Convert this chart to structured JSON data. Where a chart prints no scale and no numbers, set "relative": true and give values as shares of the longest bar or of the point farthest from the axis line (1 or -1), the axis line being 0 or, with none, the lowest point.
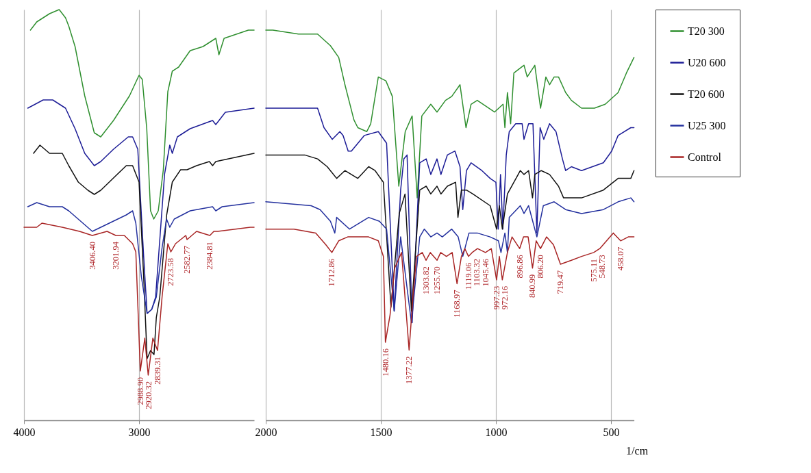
{
  "chart_data": [
    {
      "type": "line",
      "relative": true,
      "xlim": [
        4000,
        2000
      ],
      "xticks": [
        4000,
        3000
      ],
      "grid": "x",
      "line_style": "solid",
      "marker": "none",
      "series": [
        {
          "color": "#2f8f2f",
          "x": [
            3944,
            3889,
            3778,
            3694,
            3639,
            3611,
            3556,
            3472,
            3389,
            3333,
            3222,
            3083,
            3000,
            2972,
            2933,
            2900,
            2872,
            2833,
            2789,
            2750,
            2711,
            2656,
            2556,
            2444,
            2333,
            2306,
            2261,
            2050,
            2000
          ],
          "values": [
            0.95,
            0.97,
            0.99,
            1.0,
            0.98,
            0.96,
            0.91,
            0.79,
            0.7,
            0.69,
            0.73,
            0.79,
            0.84,
            0.83,
            0.71,
            0.51,
            0.49,
            0.51,
            0.61,
            0.8,
            0.85,
            0.86,
            0.9,
            0.91,
            0.93,
            0.89,
            0.93,
            0.95,
            0.95
          ]
        },
        {
          "color": "#1c1c96",
          "x": [
            3967,
            3833,
            3750,
            3639,
            3556,
            3472,
            3389,
            3333,
            3222,
            3094,
            3056,
            3011,
            2960,
            2930,
            2890,
            2856,
            2817,
            2778,
            2733,
            2711,
            2667,
            2556,
            2361,
            2333,
            2250,
            2000
          ],
          "values": [
            0.76,
            0.78,
            0.78,
            0.76,
            0.71,
            0.65,
            0.62,
            0.63,
            0.66,
            0.69,
            0.69,
            0.66,
            0.4,
            0.26,
            0.27,
            0.3,
            0.45,
            0.6,
            0.67,
            0.65,
            0.69,
            0.71,
            0.73,
            0.72,
            0.75,
            0.76
          ]
        },
        {
          "color": "#111111",
          "x": [
            3917,
            3861,
            3778,
            3667,
            3611,
            3528,
            3444,
            3389,
            3333,
            3222,
            3111,
            3056,
            3000,
            2960,
            2930,
            2900,
            2870,
            2850,
            2820,
            2760,
            2711,
            2639,
            2583,
            2500,
            2389,
            2361,
            2333,
            2000
          ],
          "values": [
            0.65,
            0.67,
            0.65,
            0.65,
            0.62,
            0.58,
            0.56,
            0.55,
            0.56,
            0.59,
            0.62,
            0.62,
            0.58,
            0.35,
            0.15,
            0.17,
            0.16,
            0.25,
            0.3,
            0.5,
            0.58,
            0.61,
            0.61,
            0.62,
            0.63,
            0.62,
            0.63,
            0.65
          ]
        },
        {
          "color": "#23309e",
          "x": [
            3967,
            3889,
            3778,
            3667,
            3611,
            3406,
            3111,
            3056,
            3028,
            2980,
            2930,
            2890,
            2850,
            2800,
            2761,
            2733,
            2694,
            2556,
            2361,
            2333,
            2278,
            2000
          ],
          "values": [
            0.52,
            0.53,
            0.52,
            0.52,
            0.51,
            0.46,
            0.5,
            0.51,
            0.48,
            0.35,
            0.26,
            0.27,
            0.3,
            0.42,
            0.49,
            0.47,
            0.49,
            0.51,
            0.52,
            0.51,
            0.52,
            0.53
          ]
        },
        {
          "color": "#a82424",
          "x": [
            4000,
            3889,
            3844,
            3667,
            3517,
            3406.4,
            3278,
            3201.94,
            3128,
            3056,
            3028,
            2988.9,
            2950,
            2920.32,
            2880,
            2839.31,
            2800,
            2750,
            2723.58,
            2683,
            2594,
            2582.77,
            2500,
            2384.81,
            2350,
            2317,
            2033,
            2000
          ],
          "values": [
            0.47,
            0.47,
            0.48,
            0.47,
            0.46,
            0.45,
            0.46,
            0.45,
            0.45,
            0.43,
            0.41,
            0.12,
            0.2,
            0.11,
            0.2,
            0.17,
            0.3,
            0.43,
            0.41,
            0.43,
            0.45,
            0.44,
            0.46,
            0.45,
            0.46,
            0.46,
            0.47,
            0.47
          ]
        }
      ],
      "annotations": [
        {
          "text": "3406.40",
          "x": 3406.4,
          "y": 0.45
        },
        {
          "text": "3201.94",
          "x": 3201.94,
          "y": 0.45
        },
        {
          "text": "2988.90",
          "x": 2988.9,
          "y": 0.12
        },
        {
          "text": "2920.32",
          "x": 2920.32,
          "y": 0.11
        },
        {
          "text": "2839.31",
          "x": 2839.31,
          "y": 0.17
        },
        {
          "text": "2723.58",
          "x": 2723.58,
          "y": 0.41
        },
        {
          "text": "2582.77",
          "x": 2582.77,
          "y": 0.44
        },
        {
          "text": "2384.81",
          "x": 2384.81,
          "y": 0.45
        }
      ]
    },
    {
      "type": "line",
      "relative": true,
      "xlabel": "1/cm",
      "xlim": [
        2000,
        400
      ],
      "xticks": [
        2000,
        1500,
        1000,
        500
      ],
      "grid": "x",
      "legend": "right",
      "line_style": "solid",
      "marker": "none",
      "series": [
        {
          "name": "T20 300",
          "color": "#2f8f2f",
          "x": [
            2000,
            1969,
            1858,
            1775,
            1719,
            1683,
            1656,
            1617,
            1600,
            1561,
            1544,
            1511,
            1478,
            1450,
            1422,
            1394,
            1364,
            1342,
            1322,
            1283,
            1256,
            1219,
            1192,
            1156,
            1130,
            1108,
            1081,
            1006,
            969,
            961,
            950,
            936,
            922,
            878,
            864,
            831,
            806,
            783,
            767,
            747,
            728,
            697,
            672,
            628,
            572,
            525,
            469,
            433,
            400
          ],
          "values": [
            1.0,
            1.0,
            0.99,
            0.99,
            0.96,
            0.93,
            0.86,
            0.77,
            0.75,
            0.74,
            0.76,
            0.88,
            0.87,
            0.83,
            0.6,
            0.74,
            0.78,
            0.57,
            0.78,
            0.81,
            0.79,
            0.82,
            0.83,
            0.86,
            0.75,
            0.81,
            0.82,
            0.79,
            0.81,
            0.75,
            0.84,
            0.76,
            0.89,
            0.91,
            0.88,
            0.91,
            0.8,
            0.88,
            0.86,
            0.88,
            0.88,
            0.84,
            0.82,
            0.8,
            0.8,
            0.81,
            0.84,
            0.89,
            0.93
          ]
        },
        {
          "name": "U20 600",
          "color": "#1c1c96",
          "x": [
            2000,
            1847,
            1775,
            1747,
            1711,
            1678,
            1664,
            1642,
            1628,
            1572,
            1511,
            1475,
            1442,
            1414,
            1400,
            1386,
            1364,
            1331,
            1303,
            1283,
            1256,
            1239,
            1211,
            1178,
            1156,
            1144,
            1128,
            1108,
            1061,
            1025,
            1000,
            990,
            980,
            970,
            955,
            942,
            914,
            886,
            878,
            858,
            839,
            822,
            808,
            792,
            767,
            739,
            711,
            697,
            672,
            628,
            533,
            497,
            469,
            414,
            400
          ],
          "values": [
            0.8,
            0.8,
            0.8,
            0.75,
            0.72,
            0.74,
            0.73,
            0.69,
            0.69,
            0.73,
            0.74,
            0.71,
            0.28,
            0.59,
            0.67,
            0.68,
            0.25,
            0.66,
            0.67,
            0.63,
            0.67,
            0.63,
            0.68,
            0.69,
            0.65,
            0.54,
            0.64,
            0.66,
            0.64,
            0.62,
            0.61,
            0.49,
            0.63,
            0.49,
            0.68,
            0.74,
            0.76,
            0.76,
            0.72,
            0.76,
            0.76,
            0.48,
            0.75,
            0.72,
            0.76,
            0.74,
            0.67,
            0.64,
            0.65,
            0.64,
            0.66,
            0.69,
            0.73,
            0.75,
            0.75
          ]
        },
        {
          "name": "T20 600",
          "color": "#111111",
          "x": [
            2000,
            1831,
            1775,
            1733,
            1692,
            1656,
            1600,
            1553,
            1525,
            1489,
            1456,
            1420,
            1395,
            1367,
            1331,
            1303,
            1283,
            1256,
            1239,
            1211,
            1175,
            1165,
            1150,
            1128,
            1100,
            1025,
            997,
            985,
            972,
            950,
            894,
            878,
            858,
            841,
            831,
            803,
            767,
            728,
            706,
            672,
            628,
            533,
            469,
            414,
            400
          ],
          "values": [
            0.68,
            0.68,
            0.67,
            0.65,
            0.62,
            0.64,
            0.62,
            0.65,
            0.64,
            0.61,
            0.29,
            0.53,
            0.58,
            0.28,
            0.59,
            0.6,
            0.58,
            0.6,
            0.58,
            0.6,
            0.61,
            0.52,
            0.59,
            0.59,
            0.58,
            0.55,
            0.49,
            0.55,
            0.49,
            0.58,
            0.64,
            0.63,
            0.64,
            0.57,
            0.63,
            0.64,
            0.63,
            0.6,
            0.57,
            0.57,
            0.57,
            0.59,
            0.62,
            0.62,
            0.64
          ]
        },
        {
          "name": "U25 300",
          "color": "#23309e",
          "x": [
            2000,
            1803,
            1764,
            1719,
            1700,
            1692,
            1636,
            1553,
            1506,
            1475,
            1442,
            1414,
            1367,
            1331,
            1311,
            1283,
            1256,
            1233,
            1192,
            1164,
            1144,
            1117,
            1081,
            1025,
            989,
            978,
            961,
            950,
            942,
            894,
            878,
            858,
            822,
            794,
            747,
            697,
            628,
            533,
            469,
            414,
            400
          ],
          "values": [
            0.56,
            0.55,
            0.54,
            0.51,
            0.48,
            0.52,
            0.49,
            0.52,
            0.51,
            0.49,
            0.28,
            0.47,
            0.25,
            0.47,
            0.49,
            0.47,
            0.48,
            0.47,
            0.49,
            0.47,
            0.42,
            0.48,
            0.48,
            0.47,
            0.46,
            0.43,
            0.48,
            0.43,
            0.52,
            0.55,
            0.53,
            0.55,
            0.47,
            0.55,
            0.56,
            0.54,
            0.53,
            0.54,
            0.56,
            0.57,
            0.56
          ]
        },
        {
          "name": "Control",
          "color": "#a82424",
          "x": [
            2000,
            1878,
            1783,
            1739,
            1712.86,
            1683,
            1644,
            1553,
            1511,
            1489,
            1480.16,
            1460,
            1440,
            1410,
            1377.22,
            1360,
            1345,
            1320,
            1303.82,
            1285,
            1255.7,
            1240,
            1215,
            1190,
            1168.97,
            1150,
            1135,
            1119.06,
            1103.32,
            1080,
            1045.46,
            1020,
            997.23,
            985,
            972.16,
            950,
            930,
            896.86,
            880,
            860,
            840.99,
            825,
            806.2,
            780,
            750,
            719.47,
            672,
            628,
            575.11,
            548.73,
            490,
            458.07,
            425,
            400
          ],
          "values": [
            0.49,
            0.49,
            0.48,
            0.45,
            0.43,
            0.46,
            0.47,
            0.47,
            0.46,
            0.42,
            0.2,
            0.27,
            0.39,
            0.43,
            0.18,
            0.32,
            0.42,
            0.43,
            0.41,
            0.43,
            0.41,
            0.43,
            0.42,
            0.43,
            0.35,
            0.42,
            0.44,
            0.42,
            0.43,
            0.44,
            0.43,
            0.44,
            0.36,
            0.42,
            0.36,
            0.43,
            0.47,
            0.44,
            0.47,
            0.47,
            0.39,
            0.46,
            0.44,
            0.47,
            0.45,
            0.4,
            0.41,
            0.42,
            0.43,
            0.44,
            0.48,
            0.46,
            0.47,
            0.47
          ]
        }
      ],
      "annotations": [
        {
          "text": "1712.86",
          "x": 1712.86,
          "y": 0.43
        },
        {
          "text": "1480.16",
          "x": 1480.16,
          "y": 0.2
        },
        {
          "text": "1377.22",
          "x": 1377.22,
          "y": 0.18
        },
        {
          "text": "1303.82",
          "x": 1303.82,
          "y": 0.41
        },
        {
          "text": "1255.70",
          "x": 1255.7,
          "y": 0.41
        },
        {
          "text": "1168.97",
          "x": 1168.97,
          "y": 0.35
        },
        {
          "text": "1119.06",
          "x": 1119.06,
          "y": 0.42
        },
        {
          "text": "1103.32",
          "x": 1103.32,
          "y": 0.43
        },
        {
          "text": "1045.46",
          "x": 1045.46,
          "y": 0.43
        },
        {
          "text": "997.23",
          "x": 997.23,
          "y": 0.36
        },
        {
          "text": "972.16",
          "x": 972.16,
          "y": 0.36
        },
        {
          "text": "896.86",
          "x": 896.86,
          "y": 0.44
        },
        {
          "text": "840.99",
          "x": 840.99,
          "y": 0.39
        },
        {
          "text": "806.20",
          "x": 806.2,
          "y": 0.44
        },
        {
          "text": "719.47",
          "x": 719.47,
          "y": 0.4
        },
        {
          "text": "575.11",
          "x": 575.11,
          "y": 0.43
        },
        {
          "text": "548.73",
          "x": 548.73,
          "y": 0.44
        },
        {
          "text": "458.07",
          "x": 458.07,
          "y": 0.46
        }
      ]
    }
  ]
}
